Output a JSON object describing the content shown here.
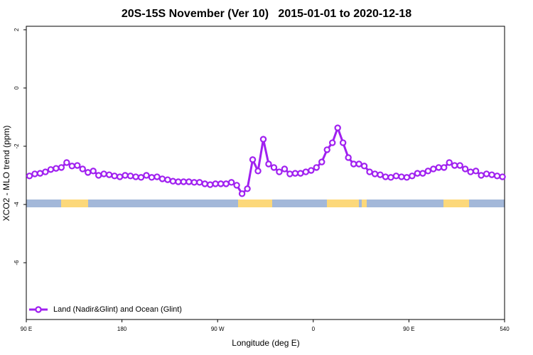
{
  "chart_data": {
    "type": "line",
    "title": "20S-15S November (Ver 10)   2015-01-01 to 2020-12-18",
    "xlabel": "Longitude (deg E)",
    "ylabel": "XCO2 - MLO trend (ppm)",
    "xlim": [
      90,
      540
    ],
    "xticks": [
      {
        "value": 90,
        "label": "90 E"
      },
      180,
      {
        "value": 270,
        "label": "90 W"
      },
      {
        "value": 360,
        "label": "0"
      },
      {
        "value": 450,
        "label": "90 E"
      },
      540
    ],
    "ylim": [
      -7.95,
      2.12
    ],
    "yticks": [
      2,
      0,
      -2,
      -4,
      -6
    ],
    "legend": "bottom-left",
    "x": [
      93,
      98,
      103,
      108,
      113,
      118,
      123,
      128,
      133,
      138,
      143,
      148,
      153,
      158,
      163,
      168,
      173,
      178,
      183,
      188,
      193,
      198,
      203,
      208,
      213,
      218,
      223,
      228,
      233,
      238,
      243,
      248,
      253,
      258,
      263,
      268,
      273,
      278,
      283,
      288,
      293,
      298,
      303,
      308,
      313,
      318,
      323,
      328,
      333,
      338,
      343,
      348,
      353,
      358,
      363,
      368,
      373,
      378,
      383,
      388,
      393,
      398,
      403,
      408,
      413,
      418,
      423,
      428,
      433,
      438,
      443,
      448,
      453,
      458,
      463,
      468,
      473,
      478,
      483,
      488,
      493,
      498,
      503,
      508,
      513,
      518,
      523,
      528,
      533,
      538
    ],
    "series": [
      {
        "name": "Land (Nadir&Glint) and Ocean (Glint)",
        "color": "#a020f0",
        "values": [
          -3.02,
          -2.95,
          -2.93,
          -2.88,
          -2.8,
          -2.76,
          -2.73,
          -2.56,
          -2.68,
          -2.66,
          -2.78,
          -2.9,
          -2.85,
          -3.0,
          -2.95,
          -2.98,
          -3.02,
          -3.05,
          -3.0,
          -3.02,
          -3.05,
          -3.07,
          -3.0,
          -3.07,
          -3.05,
          -3.12,
          -3.15,
          -3.2,
          -3.22,
          -3.22,
          -3.22,
          -3.24,
          -3.24,
          -3.29,
          -3.32,
          -3.29,
          -3.29,
          -3.29,
          -3.24,
          -3.34,
          -3.63,
          -3.46,
          -2.46,
          -2.85,
          -1.76,
          -2.61,
          -2.73,
          -2.88,
          -2.78,
          -2.95,
          -2.93,
          -2.93,
          -2.88,
          -2.83,
          -2.73,
          -2.54,
          -2.12,
          -1.88,
          -1.37,
          -1.88,
          -2.39,
          -2.61,
          -2.61,
          -2.68,
          -2.88,
          -2.95,
          -2.98,
          -3.05,
          -3.07,
          -3.02,
          -3.05,
          -3.07,
          -3.02,
          -2.93,
          -2.93,
          -2.85,
          -2.78,
          -2.73,
          -2.73,
          -2.56,
          -2.66,
          -2.66,
          -2.78,
          -2.88,
          -2.85,
          -3.0,
          -2.95,
          -2.98,
          -3.02,
          -3.05
        ]
      }
    ]
  }
}
